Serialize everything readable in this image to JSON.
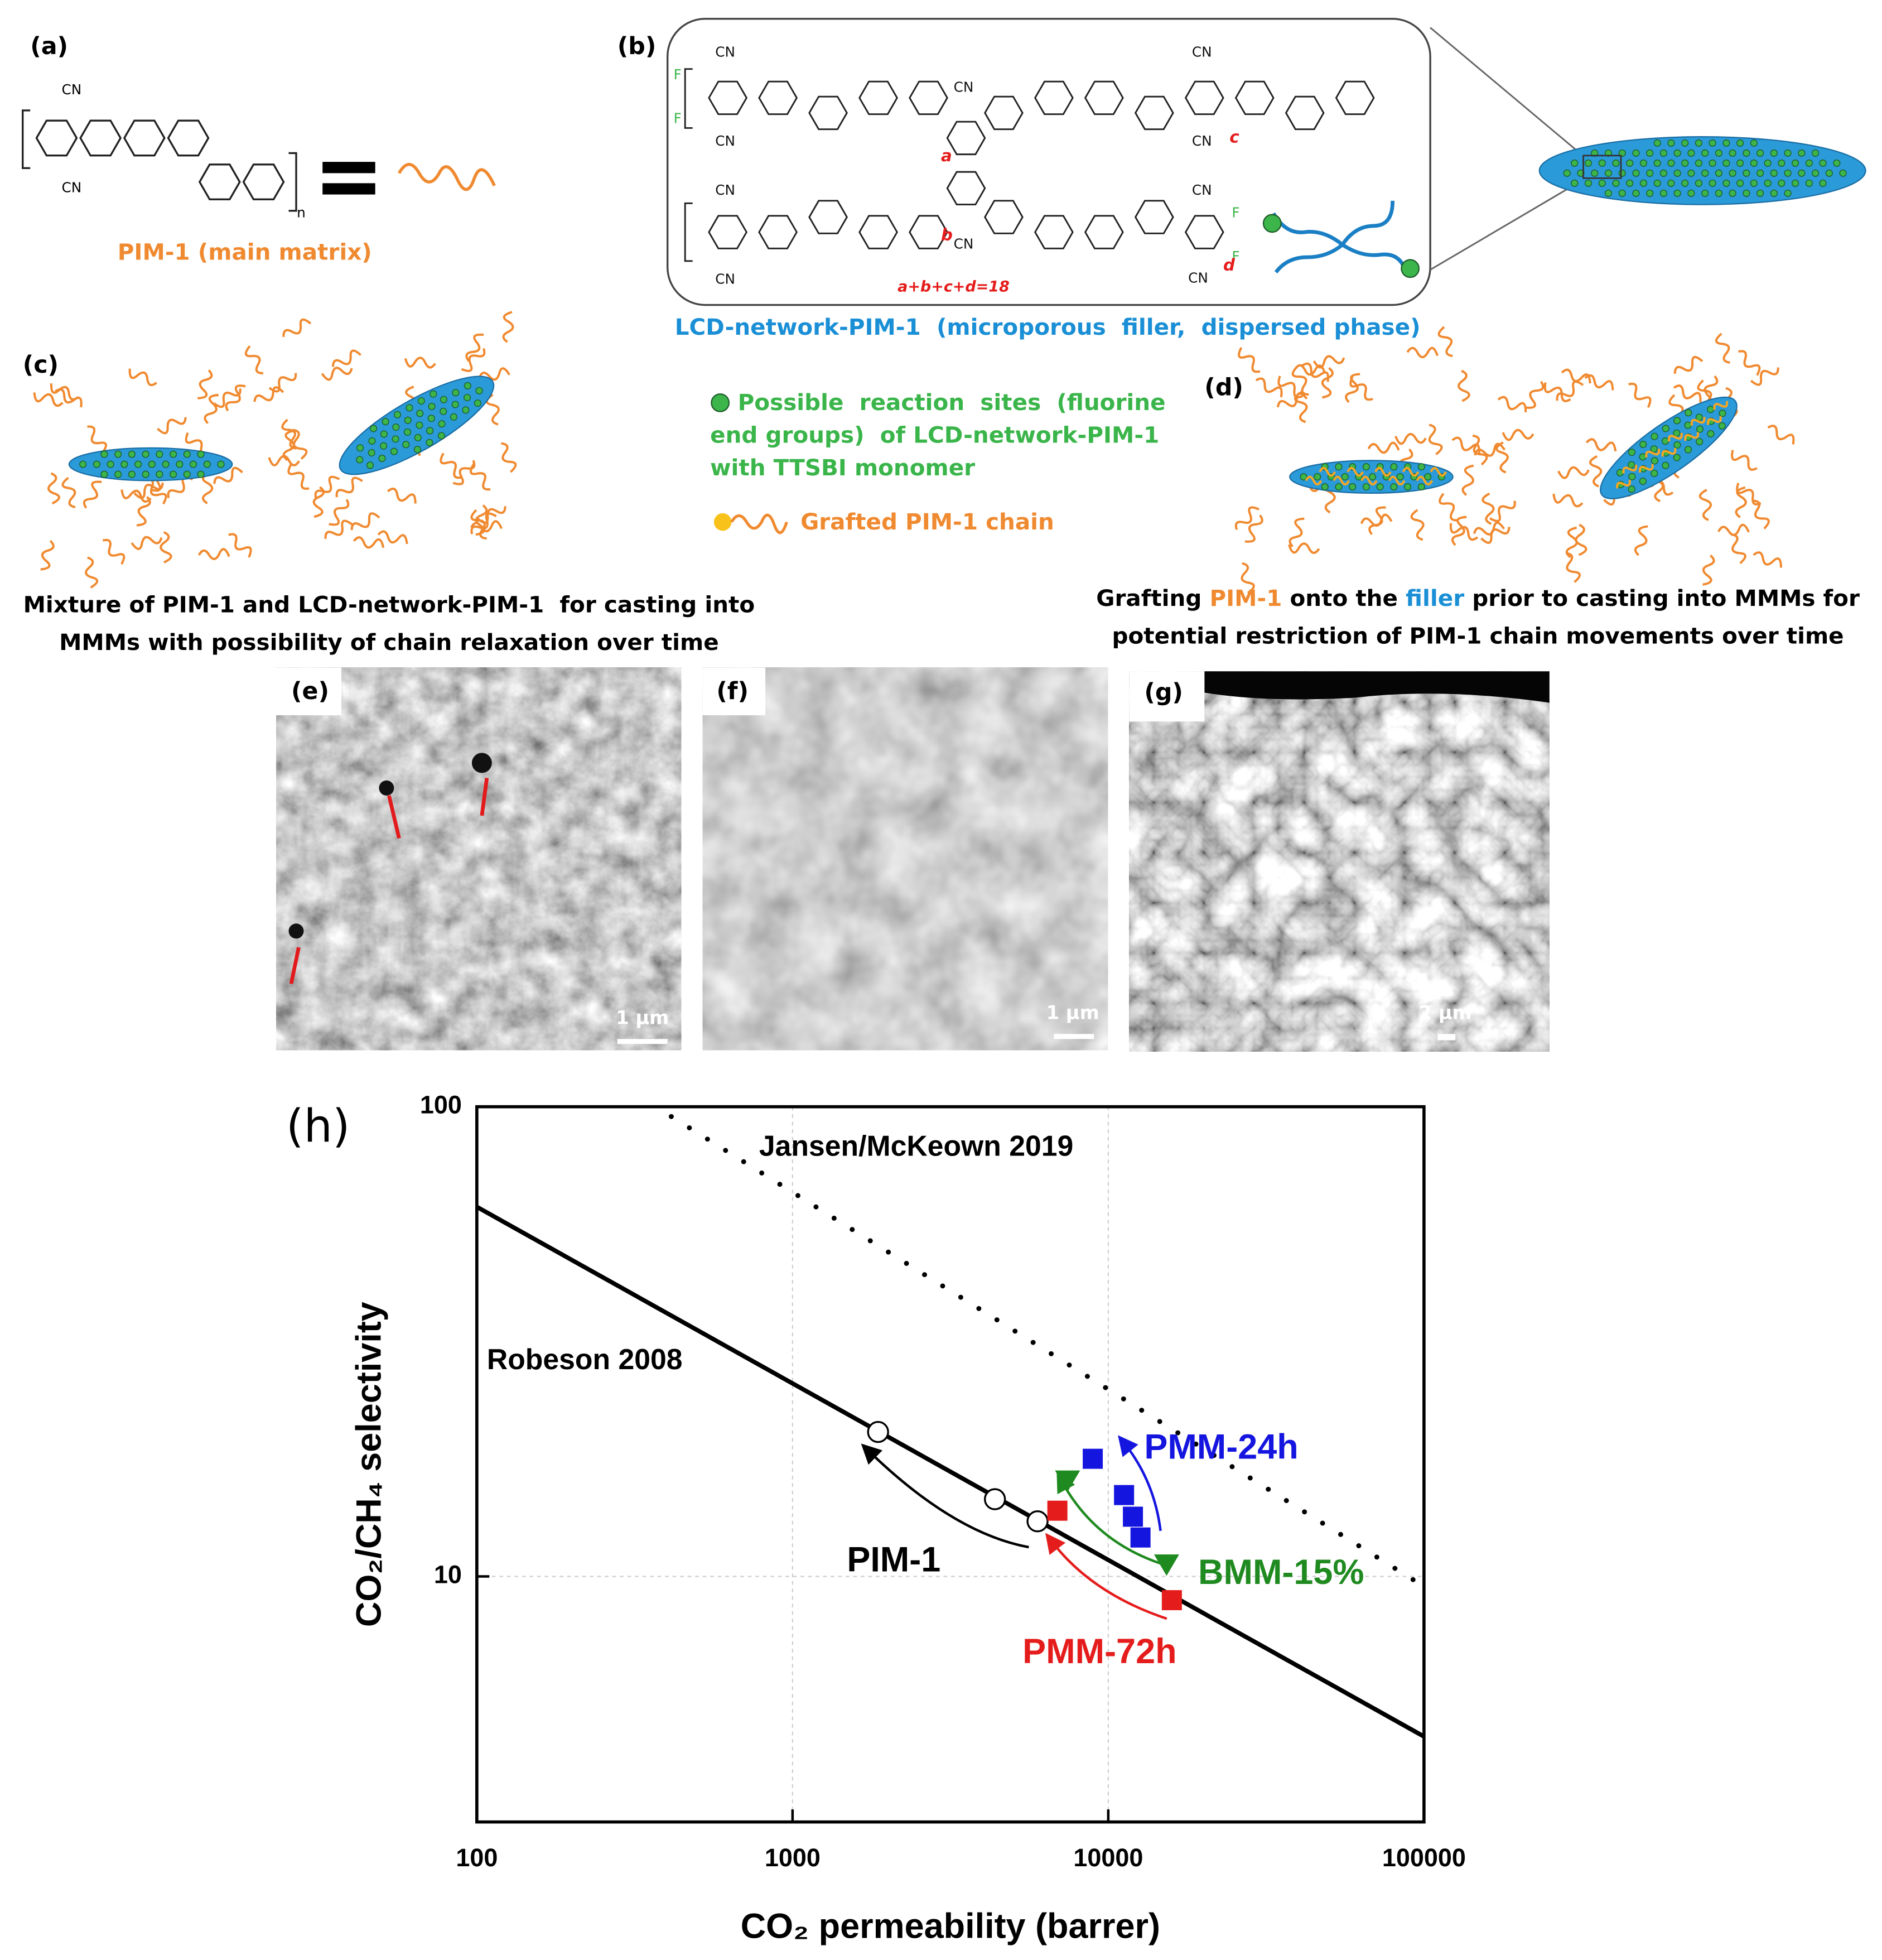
{
  "panel_a": {
    "label": "(a)",
    "atoms": [
      "CN",
      "CN",
      "n"
    ],
    "caption": "PIM-1 (main matrix)"
  },
  "panel_b": {
    "label": "(b)",
    "atoms": [
      "CN",
      "CN",
      "CN",
      "CN",
      "CN",
      "CN",
      "CN",
      "CN",
      "CN",
      "CN",
      "F",
      "F",
      "F",
      "F"
    ],
    "subscripts": [
      "a",
      "b",
      "c",
      "d"
    ],
    "equation": "a+b+c+d=18",
    "caption": "LCD-network-PIM-1  (microporous  filler,  dispersed phase)"
  },
  "panel_c": {
    "label": "(c)",
    "caption": [
      "Mixture of PIM-1 and LCD-network-PIM-1  for casting into",
      "MMMs with possibility of chain relaxation over time"
    ]
  },
  "legend": {
    "reaction_sites": [
      "Possible  reaction  sites  (fluorine",
      "end groups)  of LCD-network-PIM-1",
      "with TTSBI monomer"
    ],
    "grafted": "Grafted PIM-1 chain"
  },
  "panel_d": {
    "label": "(d)",
    "caption": {
      "line1": [
        "Grafting ",
        "PIM-1",
        " onto the ",
        "filler",
        " prior to casting into MMMs for"
      ],
      "line2": "potential restriction of PIM-1 chain movements over time"
    }
  },
  "sem": [
    {
      "label": "(e)",
      "scale": "1 µm"
    },
    {
      "label": "(f)",
      "scale": "1 µm"
    },
    {
      "label": "(g)",
      "scale": "2 µm"
    }
  ],
  "chart_data": {
    "type": "scatter",
    "panel_label": "(h)",
    "xlabel": "CO₂ permeability (barrer)",
    "ylabel": "CO₂/CH₄ selectivity",
    "log_x": true,
    "log_y": true,
    "grid": true,
    "xlim": [
      100,
      100000
    ],
    "ylim": [
      3,
      100
    ],
    "xticks": [
      100,
      1000,
      10000,
      100000
    ],
    "yticks": [
      10,
      100
    ],
    "series": [
      {
        "name": "Robeson 2008",
        "color": "#000000",
        "marker": "line",
        "x": [
          100,
          100000
        ],
        "values": [
          61.2,
          4.56
        ]
      },
      {
        "name": "Jansen/McKeown 2019",
        "color": "#000000",
        "marker": "dotted",
        "x": [
          413,
          95500
        ],
        "values": [
          95.3,
          9.7
        ]
      },
      {
        "name": "PIM-1",
        "color": "#000000",
        "marker": "circle-open",
        "x": [
          1866,
          4375,
          5970
        ],
        "values": [
          20.3,
          14.6,
          13.1
        ]
      },
      {
        "name": "PMM-24h",
        "color": "#1515e0",
        "marker": "square",
        "x": [
          8930,
          11220,
          11970,
          12650
        ],
        "values": [
          17.8,
          14.9,
          13.4,
          12.1
        ]
      },
      {
        "name": "BMM-15%",
        "color": "#1f8a1f",
        "marker": "triangle-down",
        "x": [
          7430,
          15300
        ],
        "values": [
          16.0,
          10.6
        ]
      },
      {
        "name": "PMM-72h",
        "color": "#e51c1c",
        "marker": "square",
        "x": [
          6900,
          15900
        ],
        "values": [
          13.8,
          8.9
        ]
      }
    ]
  }
}
